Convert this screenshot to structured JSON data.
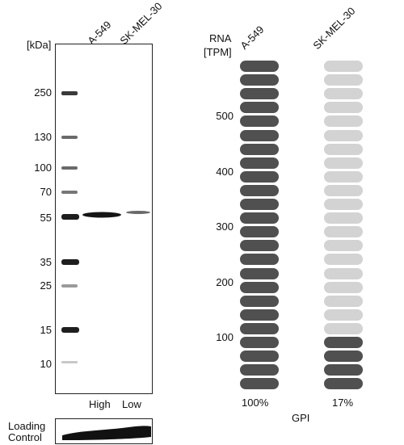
{
  "western_blot": {
    "unit_label": "[kDa]",
    "lanes": [
      "A-549",
      "SK-MEL-30"
    ],
    "markers": [
      "250",
      "130",
      "100",
      "70",
      "55",
      "35",
      "25",
      "15",
      "10"
    ],
    "expression_labels": [
      "High",
      "Low"
    ],
    "loading_control_line1": "Loading",
    "loading_control_line2": "Control"
  },
  "rna": {
    "header_line1": "RNA",
    "header_line2": "[TPM]",
    "gene": "GPI",
    "y_ticks": [
      "500",
      "400",
      "300",
      "200",
      "100"
    ],
    "dark_color": "#505050",
    "light_color": "#d3d3d3"
  },
  "chart_data": {
    "type": "bar",
    "categories": [
      "A-549",
      "SK-MEL-30"
    ],
    "values": [
      100,
      17
    ],
    "value_labels": [
      "100%",
      "17%"
    ],
    "ylabel": "RNA [TPM]",
    "segments_total": 24
  }
}
